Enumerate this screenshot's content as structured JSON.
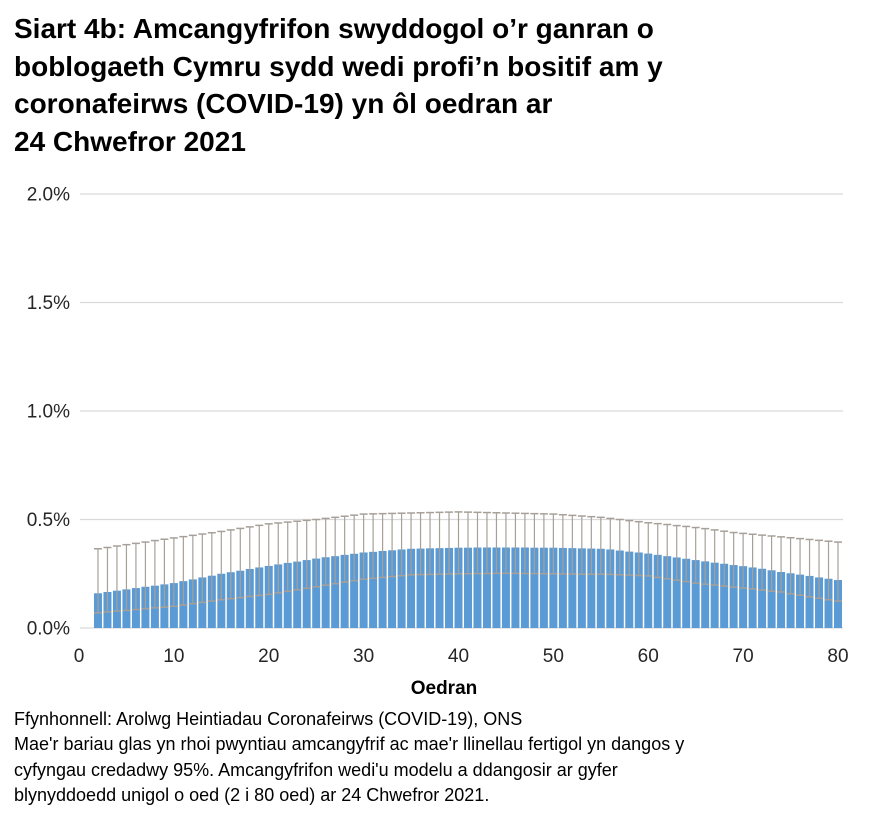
{
  "page": {
    "title_lines": [
      "Siart 4b: Amcangyfrifon swyddogol o’r ganran o",
      "boblogaeth Cymru sydd wedi profi’n bositif am y",
      "coronafeirws (COVID-19) yn ôl oedran ar",
      "24 Chwefror 2021"
    ],
    "footer_lines": [
      "Ffynhonnell: Arolwg Heintiadau Coronafeirws (COVID-19), ONS",
      "Mae'r bariau glas yn rhoi pwyntiau amcangyfrif ac mae'r llinellau fertigol yn dangos y",
      "cyfyngau credadwy 95%. Amcangyfrifon wedi'u modelu a ddangosir ar gyfer",
      "blynyddoedd unigol o oed (2 i 80 oed) ar 24 Chwefror 2021."
    ]
  },
  "chart_data": {
    "type": "bar",
    "title": "Siart 4b: Amcangyfrifon swyddogol o’r ganran o boblogaeth Cymru sydd wedi profi’n bositif am y coronafeirws (COVID-19) yn ôl oedran ar 24 Chwefror 2021",
    "xlabel": "Oedran",
    "ylabel": "",
    "unit": "%",
    "ylim": [
      0,
      2.0
    ],
    "grid": "horizontal",
    "legend": "none",
    "y_ticks": [
      {
        "value": 0.0,
        "label": "0.0%"
      },
      {
        "value": 0.5,
        "label": "0.5%"
      },
      {
        "value": 1.0,
        "label": "1.0%"
      },
      {
        "value": 1.5,
        "label": "1.5%"
      },
      {
        "value": 2.0,
        "label": "2.0%"
      }
    ],
    "x_ticks": [
      0,
      10,
      20,
      30,
      40,
      50,
      60,
      70,
      80
    ],
    "ages": [
      2,
      3,
      4,
      5,
      6,
      7,
      8,
      9,
      10,
      11,
      12,
      13,
      14,
      15,
      16,
      17,
      18,
      19,
      20,
      21,
      22,
      23,
      24,
      25,
      26,
      27,
      28,
      29,
      30,
      31,
      32,
      33,
      34,
      35,
      36,
      37,
      38,
      39,
      40,
      41,
      42,
      43,
      44,
      45,
      46,
      47,
      48,
      49,
      50,
      51,
      52,
      53,
      54,
      55,
      56,
      57,
      58,
      59,
      60,
      61,
      62,
      63,
      64,
      65,
      66,
      67,
      68,
      69,
      70,
      71,
      72,
      73,
      74,
      75,
      76,
      77,
      78,
      79,
      80
    ],
    "estimate": [
      0.16,
      0.166,
      0.172,
      0.178,
      0.184,
      0.19,
      0.195,
      0.201,
      0.207,
      0.216,
      0.224,
      0.233,
      0.241,
      0.25,
      0.257,
      0.264,
      0.272,
      0.279,
      0.286,
      0.293,
      0.3,
      0.306,
      0.313,
      0.32,
      0.326,
      0.331,
      0.337,
      0.342,
      0.348,
      0.351,
      0.355,
      0.358,
      0.362,
      0.365,
      0.366,
      0.367,
      0.368,
      0.369,
      0.37,
      0.37,
      0.371,
      0.371,
      0.371,
      0.371,
      0.371,
      0.371,
      0.37,
      0.37,
      0.37,
      0.369,
      0.368,
      0.367,
      0.366,
      0.365,
      0.362,
      0.357,
      0.352,
      0.348,
      0.343,
      0.337,
      0.331,
      0.325,
      0.319,
      0.313,
      0.307,
      0.301,
      0.296,
      0.29,
      0.285,
      0.279,
      0.273,
      0.266,
      0.258,
      0.252,
      0.246,
      0.24,
      0.233,
      0.227,
      0.221
    ],
    "lower_95": [
      0.07,
      0.074,
      0.078,
      0.081,
      0.085,
      0.089,
      0.093,
      0.096,
      0.1,
      0.106,
      0.112,
      0.118,
      0.124,
      0.13,
      0.135,
      0.14,
      0.145,
      0.15,
      0.155,
      0.162,
      0.169,
      0.176,
      0.183,
      0.19,
      0.197,
      0.204,
      0.211,
      0.218,
      0.225,
      0.229,
      0.233,
      0.237,
      0.241,
      0.245,
      0.246,
      0.247,
      0.248,
      0.249,
      0.25,
      0.25,
      0.251,
      0.251,
      0.252,
      0.252,
      0.252,
      0.251,
      0.251,
      0.25,
      0.25,
      0.249,
      0.249,
      0.248,
      0.248,
      0.248,
      0.247,
      0.245,
      0.244,
      0.242,
      0.24,
      0.233,
      0.227,
      0.22,
      0.214,
      0.207,
      0.202,
      0.198,
      0.193,
      0.188,
      0.184,
      0.18,
      0.175,
      0.17,
      0.166,
      0.158,
      0.151,
      0.144,
      0.137,
      0.13,
      0.124
    ],
    "upper_95": [
      0.365,
      0.371,
      0.378,
      0.384,
      0.39,
      0.396,
      0.403,
      0.409,
      0.415,
      0.421,
      0.427,
      0.433,
      0.439,
      0.445,
      0.452,
      0.459,
      0.466,
      0.473,
      0.48,
      0.484,
      0.488,
      0.492,
      0.496,
      0.5,
      0.505,
      0.51,
      0.515,
      0.52,
      0.525,
      0.526,
      0.527,
      0.528,
      0.529,
      0.53,
      0.531,
      0.532,
      0.533,
      0.534,
      0.535,
      0.534,
      0.533,
      0.532,
      0.531,
      0.53,
      0.529,
      0.528,
      0.527,
      0.526,
      0.525,
      0.522,
      0.519,
      0.516,
      0.513,
      0.51,
      0.505,
      0.5,
      0.495,
      0.49,
      0.485,
      0.481,
      0.477,
      0.472,
      0.468,
      0.463,
      0.458,
      0.452,
      0.446,
      0.44,
      0.436,
      0.432,
      0.428,
      0.424,
      0.42,
      0.416,
      0.412,
      0.408,
      0.404,
      0.4,
      0.396
    ],
    "colors": {
      "bar": "#5B9BD5",
      "error": "#A6A099",
      "gridline": "#D9D9D9",
      "tick_text": "#262626",
      "axis_title_text": "#000000"
    }
  }
}
